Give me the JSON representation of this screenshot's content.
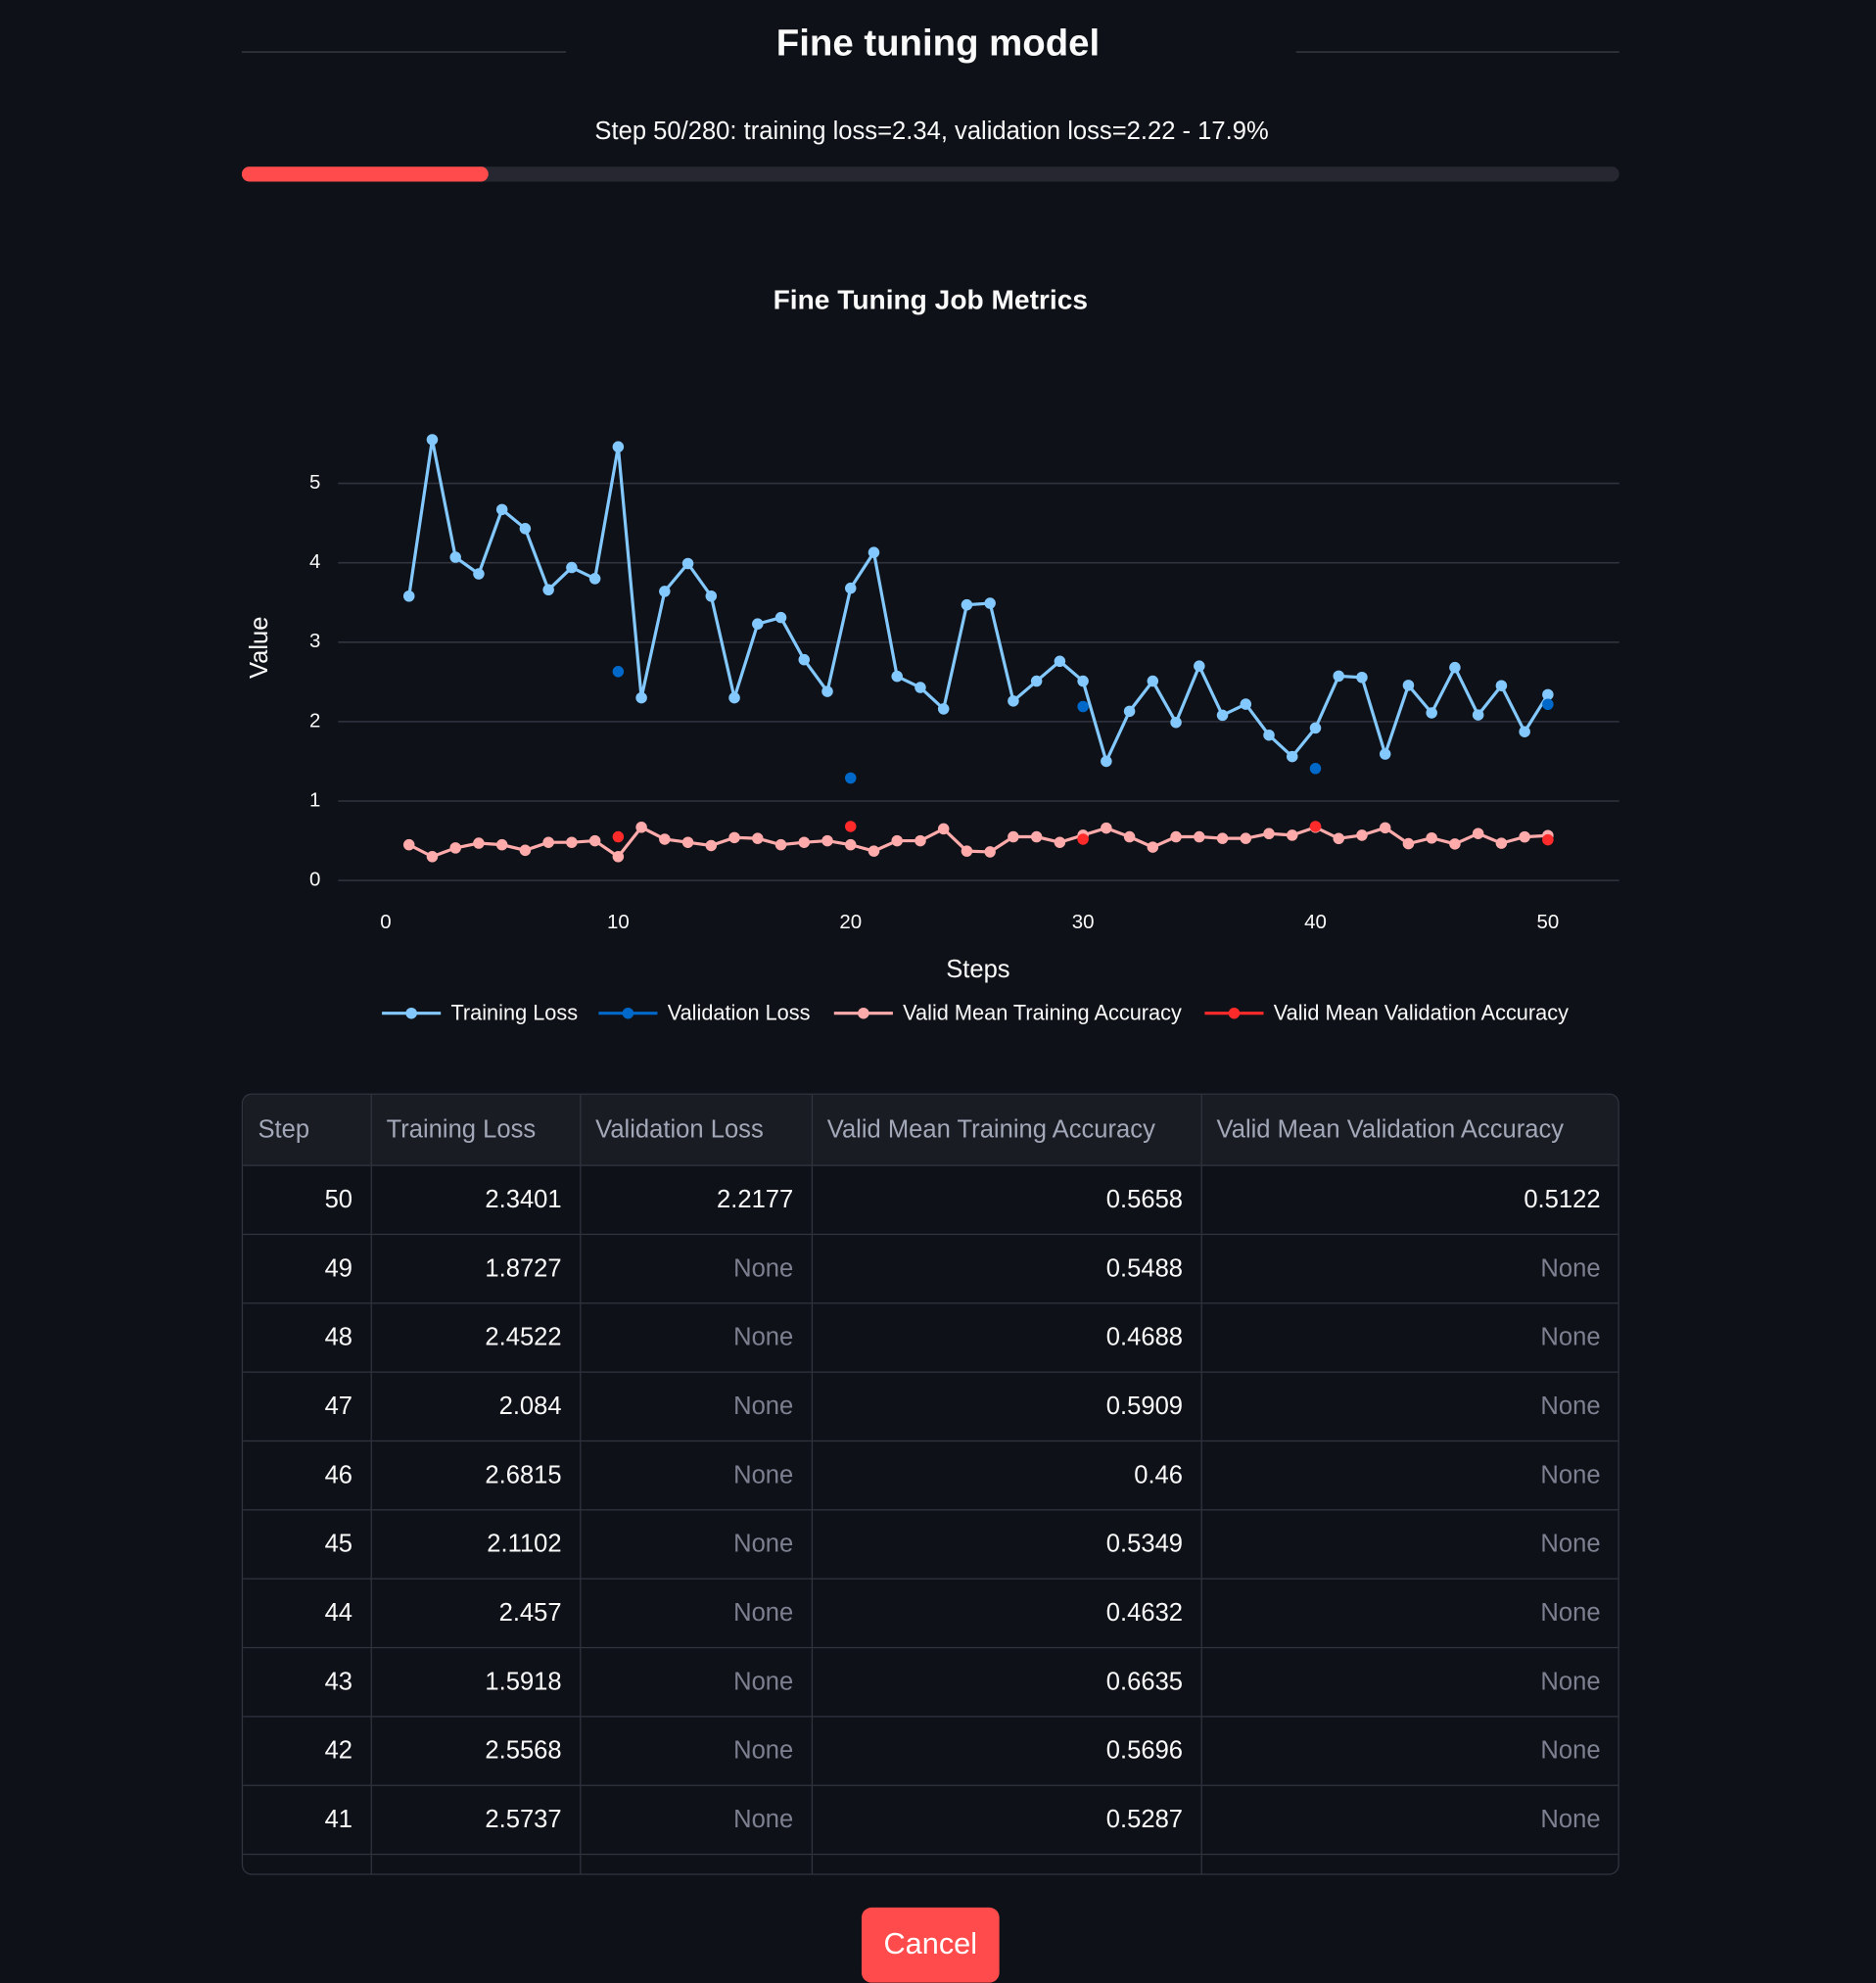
{
  "header": {
    "title": "Fine tuning model"
  },
  "progress": {
    "text": "Step 50/280: training loss=2.34, validation loss=2.22 - 17.9%",
    "value": 17.9
  },
  "chart_data": {
    "type": "line",
    "title": "Fine Tuning Job Metrics",
    "x_label": "Steps",
    "y_label": "Value",
    "x": [
      1,
      2,
      3,
      4,
      5,
      6,
      7,
      8,
      9,
      10,
      11,
      12,
      13,
      14,
      15,
      16,
      17,
      18,
      19,
      20,
      21,
      22,
      23,
      24,
      25,
      26,
      27,
      28,
      29,
      30,
      31,
      32,
      33,
      34,
      35,
      36,
      37,
      38,
      39,
      40,
      41,
      42,
      43,
      44,
      45,
      46,
      47,
      48,
      49,
      50
    ],
    "xlim": [
      -2.05,
      53.07
    ],
    "ylim": [
      0,
      5.85
    ],
    "xticks": [
      0,
      10,
      20,
      30,
      40,
      50
    ],
    "yticks": [
      0,
      1,
      2,
      3,
      4,
      5
    ],
    "grid": true,
    "legend": "bottom",
    "series": [
      {
        "name": "Training Loss",
        "color": "#83c9ff",
        "values": [
          3.58,
          5.55,
          4.07,
          3.86,
          4.67,
          4.43,
          3.66,
          3.94,
          3.8,
          5.46,
          2.3,
          3.64,
          3.99,
          3.58,
          2.3,
          3.23,
          3.31,
          2.78,
          2.38,
          3.68,
          4.13,
          2.57,
          2.43,
          2.16,
          3.47,
          3.49,
          2.26,
          2.51,
          2.76,
          2.51,
          1.5,
          2.13,
          2.51,
          1.99,
          2.7,
          2.08,
          2.22,
          1.83,
          1.56,
          1.92,
          2.5737,
          2.5568,
          1.5918,
          2.457,
          2.1102,
          2.6815,
          2.084,
          2.4522,
          1.8727,
          2.3401
        ]
      },
      {
        "name": "Validation Loss",
        "color": "#0068c9",
        "values": [
          null,
          null,
          null,
          null,
          null,
          null,
          null,
          null,
          null,
          2.63,
          null,
          null,
          null,
          null,
          null,
          null,
          null,
          null,
          null,
          1.29,
          null,
          null,
          null,
          null,
          null,
          null,
          null,
          null,
          null,
          2.19,
          null,
          null,
          null,
          null,
          null,
          null,
          null,
          null,
          null,
          1.41,
          null,
          null,
          null,
          null,
          null,
          null,
          null,
          null,
          null,
          2.2177
        ]
      },
      {
        "name": "Valid Mean Training Accuracy",
        "color": "#ffabab",
        "values": [
          0.45,
          0.3,
          0.41,
          0.47,
          0.45,
          0.38,
          0.48,
          0.48,
          0.5,
          0.3,
          0.67,
          0.52,
          0.48,
          0.44,
          0.54,
          0.53,
          0.45,
          0.48,
          0.5,
          0.45,
          0.37,
          0.5,
          0.5,
          0.65,
          0.37,
          0.36,
          0.55,
          0.55,
          0.48,
          0.57,
          0.66,
          0.55,
          0.42,
          0.55,
          0.55,
          0.53,
          0.53,
          0.59,
          0.57,
          0.67,
          0.5287,
          0.5696,
          0.6635,
          0.4632,
          0.5349,
          0.46,
          0.5909,
          0.4688,
          0.5488,
          0.5658
        ]
      },
      {
        "name": "Valid Mean Validation Accuracy",
        "color": "#ff2b2b",
        "values": [
          null,
          null,
          null,
          null,
          null,
          null,
          null,
          null,
          null,
          0.55,
          null,
          null,
          null,
          null,
          null,
          null,
          null,
          null,
          null,
          0.68,
          null,
          null,
          null,
          null,
          null,
          null,
          null,
          null,
          null,
          0.52,
          null,
          null,
          null,
          null,
          null,
          null,
          null,
          null,
          null,
          0.68,
          null,
          null,
          null,
          null,
          null,
          null,
          null,
          null,
          null,
          0.5122
        ]
      }
    ]
  },
  "table": {
    "columns": [
      "Step",
      "Training Loss",
      "Validation Loss",
      "Valid Mean Training Accuracy",
      "Valid Mean Validation Accuracy"
    ],
    "rows": [
      [
        50,
        2.3401,
        2.2177,
        0.5658,
        0.5122
      ],
      [
        49,
        1.8727,
        "None",
        0.5488,
        "None"
      ],
      [
        48,
        2.4522,
        "None",
        0.4688,
        "None"
      ],
      [
        47,
        2.084,
        "None",
        0.5909,
        "None"
      ],
      [
        46,
        2.6815,
        "None",
        0.46,
        "None"
      ],
      [
        45,
        2.1102,
        "None",
        0.5349,
        "None"
      ],
      [
        44,
        2.457,
        "None",
        0.4632,
        "None"
      ],
      [
        43,
        1.5918,
        "None",
        0.6635,
        "None"
      ],
      [
        42,
        2.5568,
        "None",
        0.5696,
        "None"
      ],
      [
        41,
        2.5737,
        "None",
        0.5287,
        "None"
      ]
    ]
  },
  "button": {
    "label": "Cancel"
  }
}
